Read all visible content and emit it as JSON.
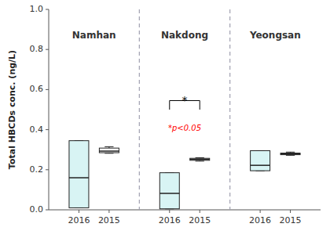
{
  "chart_data": {
    "type": "box",
    "ylabel": "Total HBCDs conc.  (ng/L)",
    "ylim": [
      0.0,
      1.0
    ],
    "yticks": [
      {
        "value": 0.0,
        "label": "0.0"
      },
      0.2,
      0.4,
      0.6,
      0.8,
      {
        "value": 1.0,
        "label": "1.0"
      }
    ],
    "categories": [
      "2016",
      "2015",
      "2016",
      "2015",
      "2016",
      "2015"
    ],
    "groups": [
      {
        "name": "Namhan",
        "y": 0.87
      },
      {
        "name": "Nakdong",
        "y": 0.87
      },
      {
        "name": "Yeongsan",
        "y": 0.87
      }
    ],
    "colors": [
      "#d8f4f4",
      "#ffffff",
      "#d8f4f4",
      "#ffffff",
      "#d8f4f4",
      "#ffffff"
    ],
    "values": [
      {
        "low": 0.01,
        "q1": 0.01,
        "median": 0.16,
        "q3": 0.345,
        "high": 0.345
      },
      {
        "low": 0.282,
        "q1": 0.285,
        "median": 0.293,
        "q3": 0.308,
        "high": 0.315
      },
      {
        "low": 0.005,
        "q1": 0.005,
        "median": 0.082,
        "q3": 0.185,
        "high": 0.185
      },
      {
        "low": 0.243,
        "q1": 0.247,
        "median": 0.252,
        "q3": 0.257,
        "high": 0.26
      },
      {
        "low": 0.195,
        "q1": 0.195,
        "median": 0.222,
        "q3": 0.295,
        "high": 0.295
      },
      {
        "low": 0.272,
        "q1": 0.275,
        "median": 0.279,
        "q3": 0.283,
        "high": 0.288
      }
    ],
    "annotations": [
      {
        "type": "bracket",
        "between": [
          2,
          3
        ],
        "y": 0.5,
        "y_top": 0.545,
        "text": "*",
        "text_y": 0.56
      },
      {
        "type": "text",
        "between": [
          2,
          3
        ],
        "text": "*p<0.05",
        "y": 0.405,
        "color": "red"
      }
    ]
  }
}
